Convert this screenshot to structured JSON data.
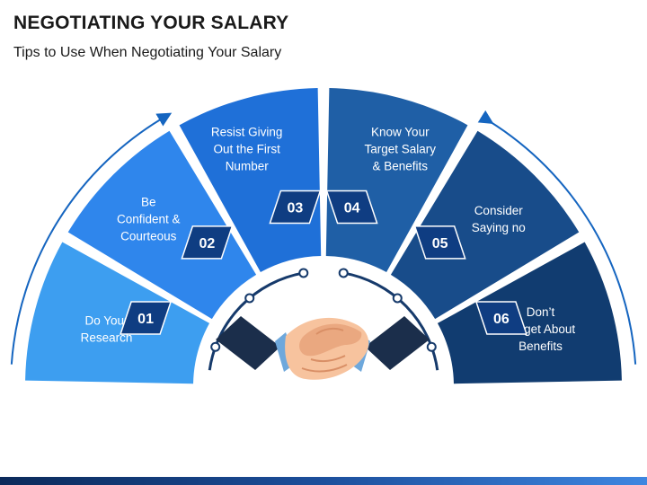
{
  "header": {
    "title": "NEGOTIATING YOUR SALARY",
    "subtitle": "Tips to Use When Negotiating Your Salary"
  },
  "tips": [
    {
      "number": "01",
      "lines": [
        "Do Your",
        "Research"
      ],
      "color": "#3d9ef0"
    },
    {
      "number": "02",
      "lines": [
        "Be",
        "Confident &",
        "Courteous"
      ],
      "color": "#2f86ec"
    },
    {
      "number": "03",
      "lines": [
        "Resist Giving",
        "Out the First",
        "Number"
      ],
      "color": "#1f70d8"
    },
    {
      "number": "04",
      "lines": [
        "Know Your",
        "Target Salary",
        "& Benefits"
      ],
      "color": "#1f5fa6"
    },
    {
      "number": "05",
      "lines": [
        "Consider",
        "Saying no"
      ],
      "color": "#184c8a"
    },
    {
      "number": "06",
      "lines": [
        "Don’t",
        "Forget About",
        "Benefits"
      ],
      "color": "#113c70"
    }
  ],
  "colors": {
    "badge_fill": "#0f3d82",
    "arc": "#1565c0",
    "sleeve": "#1b2e4b",
    "cuff": "#6ea8dc",
    "skin": "#f7c39e"
  },
  "center_icon": "handshake-icon"
}
